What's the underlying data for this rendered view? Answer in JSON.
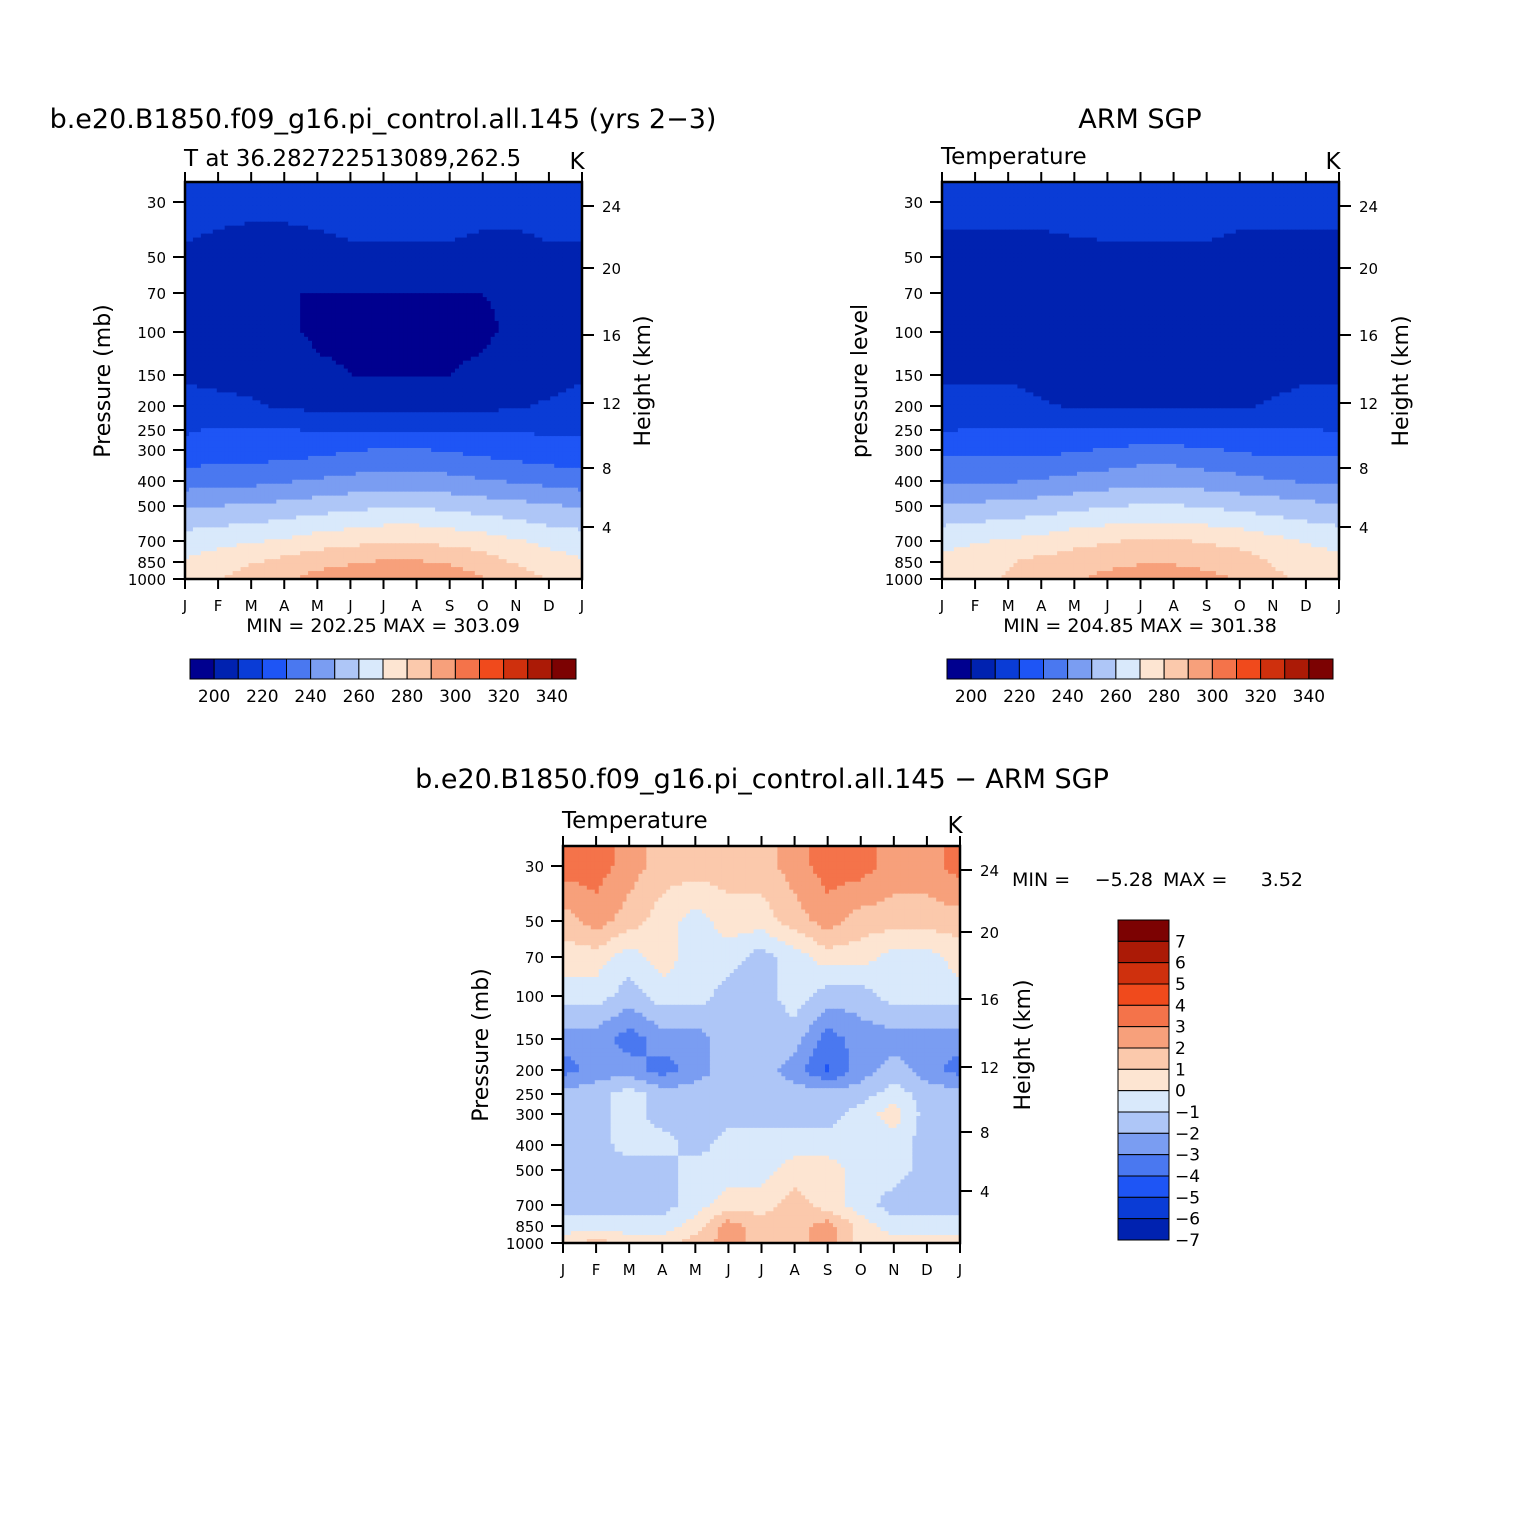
{
  "chart_data": [
    {
      "type": "heatmap",
      "id": "model",
      "title": "b.e20.B1850.f09_g16.pi_control.all.145 (yrs 2−3)",
      "subtitle_left": "T at 36.282722513089,262.5",
      "units": "K",
      "ylabel": "Pressure (mb)",
      "ylabel_right": "Height (km)",
      "min_label": "MIN = 202.25 MAX = 303.09",
      "x_ticks": [
        "J",
        "F",
        "M",
        "A",
        "M",
        "J",
        "J",
        "A",
        "S",
        "O",
        "N",
        "D",
        "J"
      ],
      "pressure_ticks": [
        "30",
        "50",
        "70",
        "100",
        "150",
        "200",
        "250",
        "300",
        "400",
        "500",
        "700",
        "850",
        "1000"
      ],
      "height_ticks": [
        "24",
        "20",
        "16",
        "12",
        "8",
        "4"
      ],
      "legend_levels": [
        195,
        205,
        215,
        225,
        235,
        245,
        255,
        265,
        275,
        285,
        295,
        305,
        315,
        325,
        335,
        345
      ],
      "legend_labels": [
        "200",
        "220",
        "240",
        "260",
        "280",
        "300",
        "320",
        "340"
      ],
      "months": [
        "J",
        "F",
        "M",
        "A",
        "M",
        "J",
        "J",
        "A",
        "S",
        "O",
        "N",
        "D",
        "J"
      ],
      "levels_mb": [
        30,
        50,
        70,
        100,
        150,
        200,
        250,
        300,
        400,
        500,
        700,
        850,
        1000
      ],
      "values": [
        [
          218,
          218,
          218,
          218,
          220,
          222,
          224,
          224,
          222,
          218,
          218,
          218,
          218
        ],
        [
          214,
          212,
          210,
          210,
          210,
          212,
          212,
          212,
          212,
          212,
          212,
          214,
          214
        ],
        [
          208,
          206,
          206,
          205,
          205,
          205,
          205,
          205,
          205,
          205,
          206,
          208,
          208
        ],
        [
          212,
          210,
          208,
          206,
          204,
          204,
          204,
          204,
          204,
          204,
          206,
          208,
          212
        ],
        [
          214,
          212,
          212,
          210,
          206,
          205,
          205,
          205,
          205,
          206,
          210,
          212,
          214
        ],
        [
          218,
          218,
          216,
          214,
          212,
          212,
          212,
          212,
          212,
          212,
          214,
          216,
          218
        ],
        [
          224,
          226,
          226,
          226,
          224,
          224,
          224,
          224,
          224,
          224,
          224,
          224,
          224
        ],
        [
          228,
          230,
          230,
          230,
          232,
          234,
          236,
          236,
          234,
          232,
          230,
          228,
          228
        ],
        [
          240,
          242,
          242,
          244,
          246,
          248,
          250,
          250,
          248,
          246,
          244,
          242,
          240
        ],
        [
          254,
          255,
          256,
          258,
          260,
          262,
          264,
          264,
          262,
          260,
          258,
          256,
          254
        ],
        [
          270,
          272,
          274,
          276,
          280,
          282,
          284,
          284,
          282,
          280,
          276,
          272,
          270
        ],
        [
          276,
          280,
          284,
          288,
          292,
          294,
          296,
          296,
          294,
          290,
          284,
          280,
          276
        ],
        [
          280,
          284,
          290,
          294,
          298,
          301,
          303,
          303,
          300,
          296,
          290,
          284,
          280
        ]
      ]
    },
    {
      "type": "heatmap",
      "id": "obs",
      "title": "ARM SGP",
      "subtitle_left": "Temperature",
      "units": "K",
      "ylabel": "pressure level",
      "ylabel_right": "Height (km)",
      "min_label": "MIN = 204.85 MAX = 301.38",
      "x_ticks": [
        "J",
        "F",
        "M",
        "A",
        "M",
        "J",
        "J",
        "A",
        "S",
        "O",
        "N",
        "D",
        "J"
      ],
      "pressure_ticks": [
        "30",
        "50",
        "70",
        "100",
        "150",
        "200",
        "250",
        "300",
        "400",
        "500",
        "700",
        "850",
        "1000"
      ],
      "height_ticks": [
        "24",
        "20",
        "16",
        "12",
        "8",
        "4"
      ],
      "legend_levels": [
        195,
        205,
        215,
        225,
        235,
        245,
        255,
        265,
        275,
        285,
        295,
        305,
        315,
        325,
        335,
        345
      ],
      "legend_labels": [
        "200",
        "220",
        "240",
        "260",
        "280",
        "300",
        "320",
        "340"
      ],
      "months": [
        "J",
        "F",
        "M",
        "A",
        "M",
        "J",
        "J",
        "A",
        "S",
        "O",
        "N",
        "D",
        "J"
      ],
      "levels_mb": [
        30,
        50,
        70,
        100,
        150,
        200,
        250,
        300,
        400,
        500,
        700,
        850,
        1000
      ],
      "values": [
        [
          218,
          218,
          218,
          218,
          220,
          222,
          224,
          224,
          222,
          218,
          218,
          218,
          218
        ],
        [
          212,
          212,
          212,
          212,
          212,
          212,
          212,
          212,
          212,
          212,
          212,
          212,
          212
        ],
        [
          208,
          208,
          210,
          210,
          208,
          206,
          206,
          206,
          206,
          206,
          208,
          210,
          208
        ],
        [
          214,
          212,
          210,
          208,
          206,
          206,
          206,
          206,
          206,
          206,
          208,
          210,
          214
        ],
        [
          214,
          214,
          214,
          212,
          210,
          208,
          208,
          208,
          210,
          210,
          212,
          214,
          214
        ],
        [
          218,
          218,
          218,
          216,
          214,
          214,
          214,
          214,
          214,
          214,
          216,
          218,
          218
        ],
        [
          224,
          226,
          226,
          226,
          226,
          226,
          226,
          226,
          226,
          226,
          226,
          226,
          224
        ],
        [
          232,
          232,
          232,
          232,
          234,
          236,
          238,
          238,
          236,
          234,
          232,
          232,
          232
        ],
        [
          244,
          244,
          244,
          246,
          248,
          250,
          252,
          252,
          250,
          248,
          246,
          244,
          244
        ],
        [
          256,
          257,
          258,
          260,
          262,
          264,
          266,
          266,
          264,
          262,
          260,
          258,
          256
        ],
        [
          272,
          274,
          276,
          278,
          282,
          284,
          286,
          286,
          284,
          282,
          278,
          274,
          272
        ],
        [
          278,
          280,
          284,
          288,
          290,
          292,
          294,
          294,
          292,
          290,
          284,
          280,
          278
        ],
        [
          280,
          282,
          286,
          290,
          294,
          298,
          301,
          301,
          298,
          294,
          288,
          282,
          280
        ]
      ]
    },
    {
      "type": "heatmap",
      "id": "diff",
      "title": "b.e20.B1850.f09_g16.pi_control.all.145 − ARM SGP",
      "subtitle_left": "Temperature",
      "units": "K",
      "ylabel": "Pressure (mb)",
      "ylabel_right": "Height (km)",
      "min_prefix": "MIN =",
      "min_value": "−5.28",
      "max_prefix": "MAX =",
      "max_value": "3.52",
      "x_ticks": [
        "J",
        "F",
        "M",
        "A",
        "M",
        "J",
        "J",
        "A",
        "S",
        "O",
        "N",
        "D",
        "J"
      ],
      "pressure_ticks": [
        "30",
        "50",
        "70",
        "100",
        "150",
        "200",
        "250",
        "300",
        "400",
        "500",
        "700",
        "850",
        "1000"
      ],
      "height_ticks": [
        "24",
        "20",
        "16",
        "12",
        "8",
        "4"
      ],
      "legend_levels": [
        -8,
        -7,
        -6,
        -5,
        -4,
        -3,
        -2,
        -1,
        0,
        1,
        2,
        3,
        4,
        5,
        6,
        7,
        8
      ],
      "legend_labels": [
        "7",
        "6",
        "5",
        "4",
        "3",
        "2",
        "1",
        "0",
        "−1",
        "−2",
        "−3",
        "−4",
        "−5",
        "−6",
        "−7"
      ],
      "months": [
        "J",
        "F",
        "M",
        "A",
        "M",
        "J",
        "J",
        "A",
        "S",
        "O",
        "N",
        "D",
        "J"
      ],
      "levels_mb": [
        30,
        50,
        70,
        100,
        150,
        200,
        250,
        300,
        400,
        500,
        700,
        850,
        1000
      ],
      "values": [
        [
          2.5,
          2.5,
          1.5,
          0.5,
          0.5,
          0.5,
          0.5,
          1.5,
          2.5,
          2.5,
          1.5,
          1.5,
          2.5
        ],
        [
          0.5,
          1.5,
          0.5,
          -0.5,
          -1.5,
          -0.5,
          -0.5,
          0.5,
          1.5,
          0.5,
          0.5,
          0.5,
          0.5
        ],
        [
          -0.5,
          -0.5,
          -1.5,
          -0.5,
          -1.5,
          -1.5,
          -2.5,
          -1.5,
          -0.5,
          -0.5,
          -1.5,
          -1.5,
          -0.5
        ],
        [
          -1.5,
          -1.5,
          -2.5,
          -1.5,
          -1.5,
          -2.5,
          -2.5,
          -1.5,
          -2.5,
          -2.5,
          -1.5,
          -1.5,
          -1.5
        ],
        [
          -3.5,
          -3.5,
          -4.5,
          -3.5,
          -3.5,
          -2.5,
          -2.5,
          -2.5,
          -4.5,
          -3.5,
          -3.5,
          -3.5,
          -3.5
        ],
        [
          -4.5,
          -3.5,
          -3.5,
          -4.5,
          -3.5,
          -2.5,
          -2.5,
          -3.5,
          -5.2,
          -3.5,
          -2.5,
          -3.5,
          -4.5
        ],
        [
          -2.5,
          -2.5,
          -1.5,
          -2.5,
          -2.5,
          -2.5,
          -2.5,
          -2.5,
          -2.5,
          -2.5,
          -1.5,
          -2.5,
          -2.5
        ],
        [
          -2.5,
          -2.5,
          -1.5,
          -2.5,
          -2.5,
          -2.5,
          -2.5,
          -2.5,
          -2.5,
          -1.5,
          -0.5,
          -2.5,
          -2.5
        ],
        [
          -2.5,
          -2.5,
          -1.5,
          -1.5,
          -2.5,
          -1.5,
          -1.5,
          -1.5,
          -1.5,
          -1.5,
          -1.5,
          -2.5,
          -2.5
        ],
        [
          -2.5,
          -2.5,
          -2.5,
          -2.5,
          -1.5,
          -1.5,
          -1.5,
          -0.5,
          -0.5,
          -1.5,
          -1.5,
          -2.5,
          -2.5
        ],
        [
          -2.5,
          -2.5,
          -2.5,
          -2.5,
          -1.5,
          -0.5,
          -0.5,
          0.5,
          -0.5,
          -1.5,
          -2.5,
          -2.5,
          -2.5
        ],
        [
          -1.5,
          -1.5,
          -1.5,
          -1.5,
          -0.5,
          1.5,
          0.5,
          0.5,
          1.5,
          -0.5,
          -1.5,
          -1.5,
          -1.5
        ],
        [
          -0.5,
          0.5,
          -0.5,
          -0.5,
          0.5,
          1.5,
          0.5,
          0.5,
          1.5,
          -0.5,
          -0.5,
          -0.5,
          -0.5
        ]
      ]
    }
  ],
  "colors": {
    "abs_palette": [
      "#00008f",
      "#0022b0",
      "#0a3cd6",
      "#1e55f5",
      "#4a78f0",
      "#7a9df2",
      "#aec6f7",
      "#d9e9fb",
      "#fde5d2",
      "#fbc9ac",
      "#f7a07b",
      "#f4734a",
      "#f04a1c",
      "#cf300d",
      "#ab1a06",
      "#7c0202"
    ],
    "diff_palette": [
      "#0022b0",
      "#0a3cd6",
      "#1e55f5",
      "#4a78f0",
      "#7a9df2",
      "#aec6f7",
      "#d9e9fb",
      "#fde5d2",
      "#fbc9ac",
      "#f7a07b",
      "#f4734a",
      "#f04a1c",
      "#cf300d",
      "#ab1a06",
      "#7c0202"
    ]
  }
}
